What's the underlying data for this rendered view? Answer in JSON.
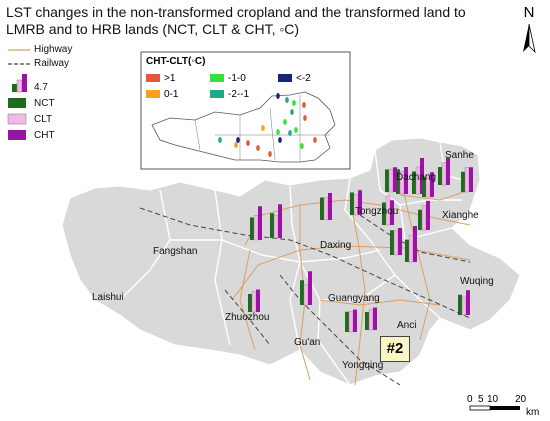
{
  "title": "LST changes in the non-transformed cropland and the transformed land to LMRB and to HRB lands (NCT, CLT & CHT, ◦C)",
  "north_label": "N",
  "legend": {
    "highway": "Highway",
    "railway": "Railway",
    "bar_value": "4.7",
    "nct": "NCT",
    "clt": "CLT",
    "cht": "CHT"
  },
  "inset": {
    "title": "CHT-CLT(◦C)",
    "classes": [
      {
        "label": ">1",
        "color": "#e05a3a"
      },
      {
        "label": "-1-0",
        "color": "#3ae03a"
      },
      {
        "label": "<-2",
        "color": "#1a237e"
      },
      {
        "label": "0-1",
        "color": "#f3a21a"
      },
      {
        "label": "-2--1",
        "color": "#1fa88a"
      }
    ]
  },
  "places": {
    "sanhe": "Sanhe",
    "dachang": "Dachang",
    "tongzhou": "Tongzhou",
    "xianghe": "Xianghe",
    "fangshan": "Fangshan",
    "daxing": "Daxing",
    "laishui": "Laishui",
    "zhuozhou": "Zhuozhou",
    "guangyang": "Guangyang",
    "anci": "Anci",
    "guan": "Gu'an",
    "yongqing": "Yongqing",
    "wuqing": "Wuqing"
  },
  "badge": "#2",
  "scale": {
    "t0": "0",
    "t5": "5",
    "t10": "10",
    "t20": "20",
    "unit": "km"
  },
  "colors": {
    "nct": "#1d6b1d",
    "clt": "#f4b8e8",
    "cht": "#9a13a6",
    "region": "#d9d9d9",
    "border": "#ffffff",
    "highway": "#d8a060",
    "railway": "#444444"
  },
  "bars": [
    {
      "nct": 0.55,
      "clt": 0.5,
      "cht": 0.6
    },
    {
      "nct": 0.5,
      "clt": 0.6,
      "cht": 0.8
    },
    {
      "nct": 0.45,
      "clt": 0.5,
      "cht": 0.55
    },
    {
      "nct": 0.4,
      "clt": 0.5,
      "cht": 0.6
    },
    {
      "nct": 0.45,
      "clt": 0.55,
      "cht": 0.55
    },
    {
      "nct": 0.5,
      "clt": 0.5,
      "cht": 0.55
    },
    {
      "nct": 0.55,
      "clt": 0.55,
      "cht": 0.6
    },
    {
      "nct": 0.5,
      "clt": 0.6,
      "cht": 0.8
    },
    {
      "nct": 0.45,
      "clt": 0.55,
      "cht": 0.65
    },
    {
      "nct": 0.5,
      "clt": 0.65,
      "cht": 0.55
    },
    {
      "nct": 0.5,
      "clt": 0.55,
      "cht": 0.75
    },
    {
      "nct": 0.55,
      "clt": 0.5,
      "cht": 0.75
    },
    {
      "nct": 0.5,
      "clt": 0.5,
      "cht": 0.6
    },
    {
      "nct": 0.5,
      "clt": 0.45,
      "cht": 0.55
    },
    {
      "nct": 0.55,
      "clt": 0.45,
      "cht": 0.75
    },
    {
      "nct": 0.4,
      "clt": 0.45,
      "cht": 0.5
    },
    {
      "nct": 0.45,
      "clt": 0.45,
      "cht": 0.5
    },
    {
      "nct": 0.4,
      "clt": 0.45,
      "cht": 0.5
    },
    {
      "nct": 0.45,
      "clt": 0.4,
      "cht": 0.55
    }
  ],
  "inset_dots": [
    "#1a237e",
    "#1fa88a",
    "#3ae03a",
    "#e05a3a",
    "#1fa88a",
    "#e05a3a",
    "#3ae03a",
    "#f3a21a",
    "#1a237e",
    "#e05a3a",
    "#3ae03a",
    "#1fa88a",
    "#e05a3a",
    "#1a237e",
    "#3ae03a",
    "#e05a3a",
    "#1fa88a",
    "#f3a21a",
    "#e05a3a",
    "#3ae03a"
  ]
}
